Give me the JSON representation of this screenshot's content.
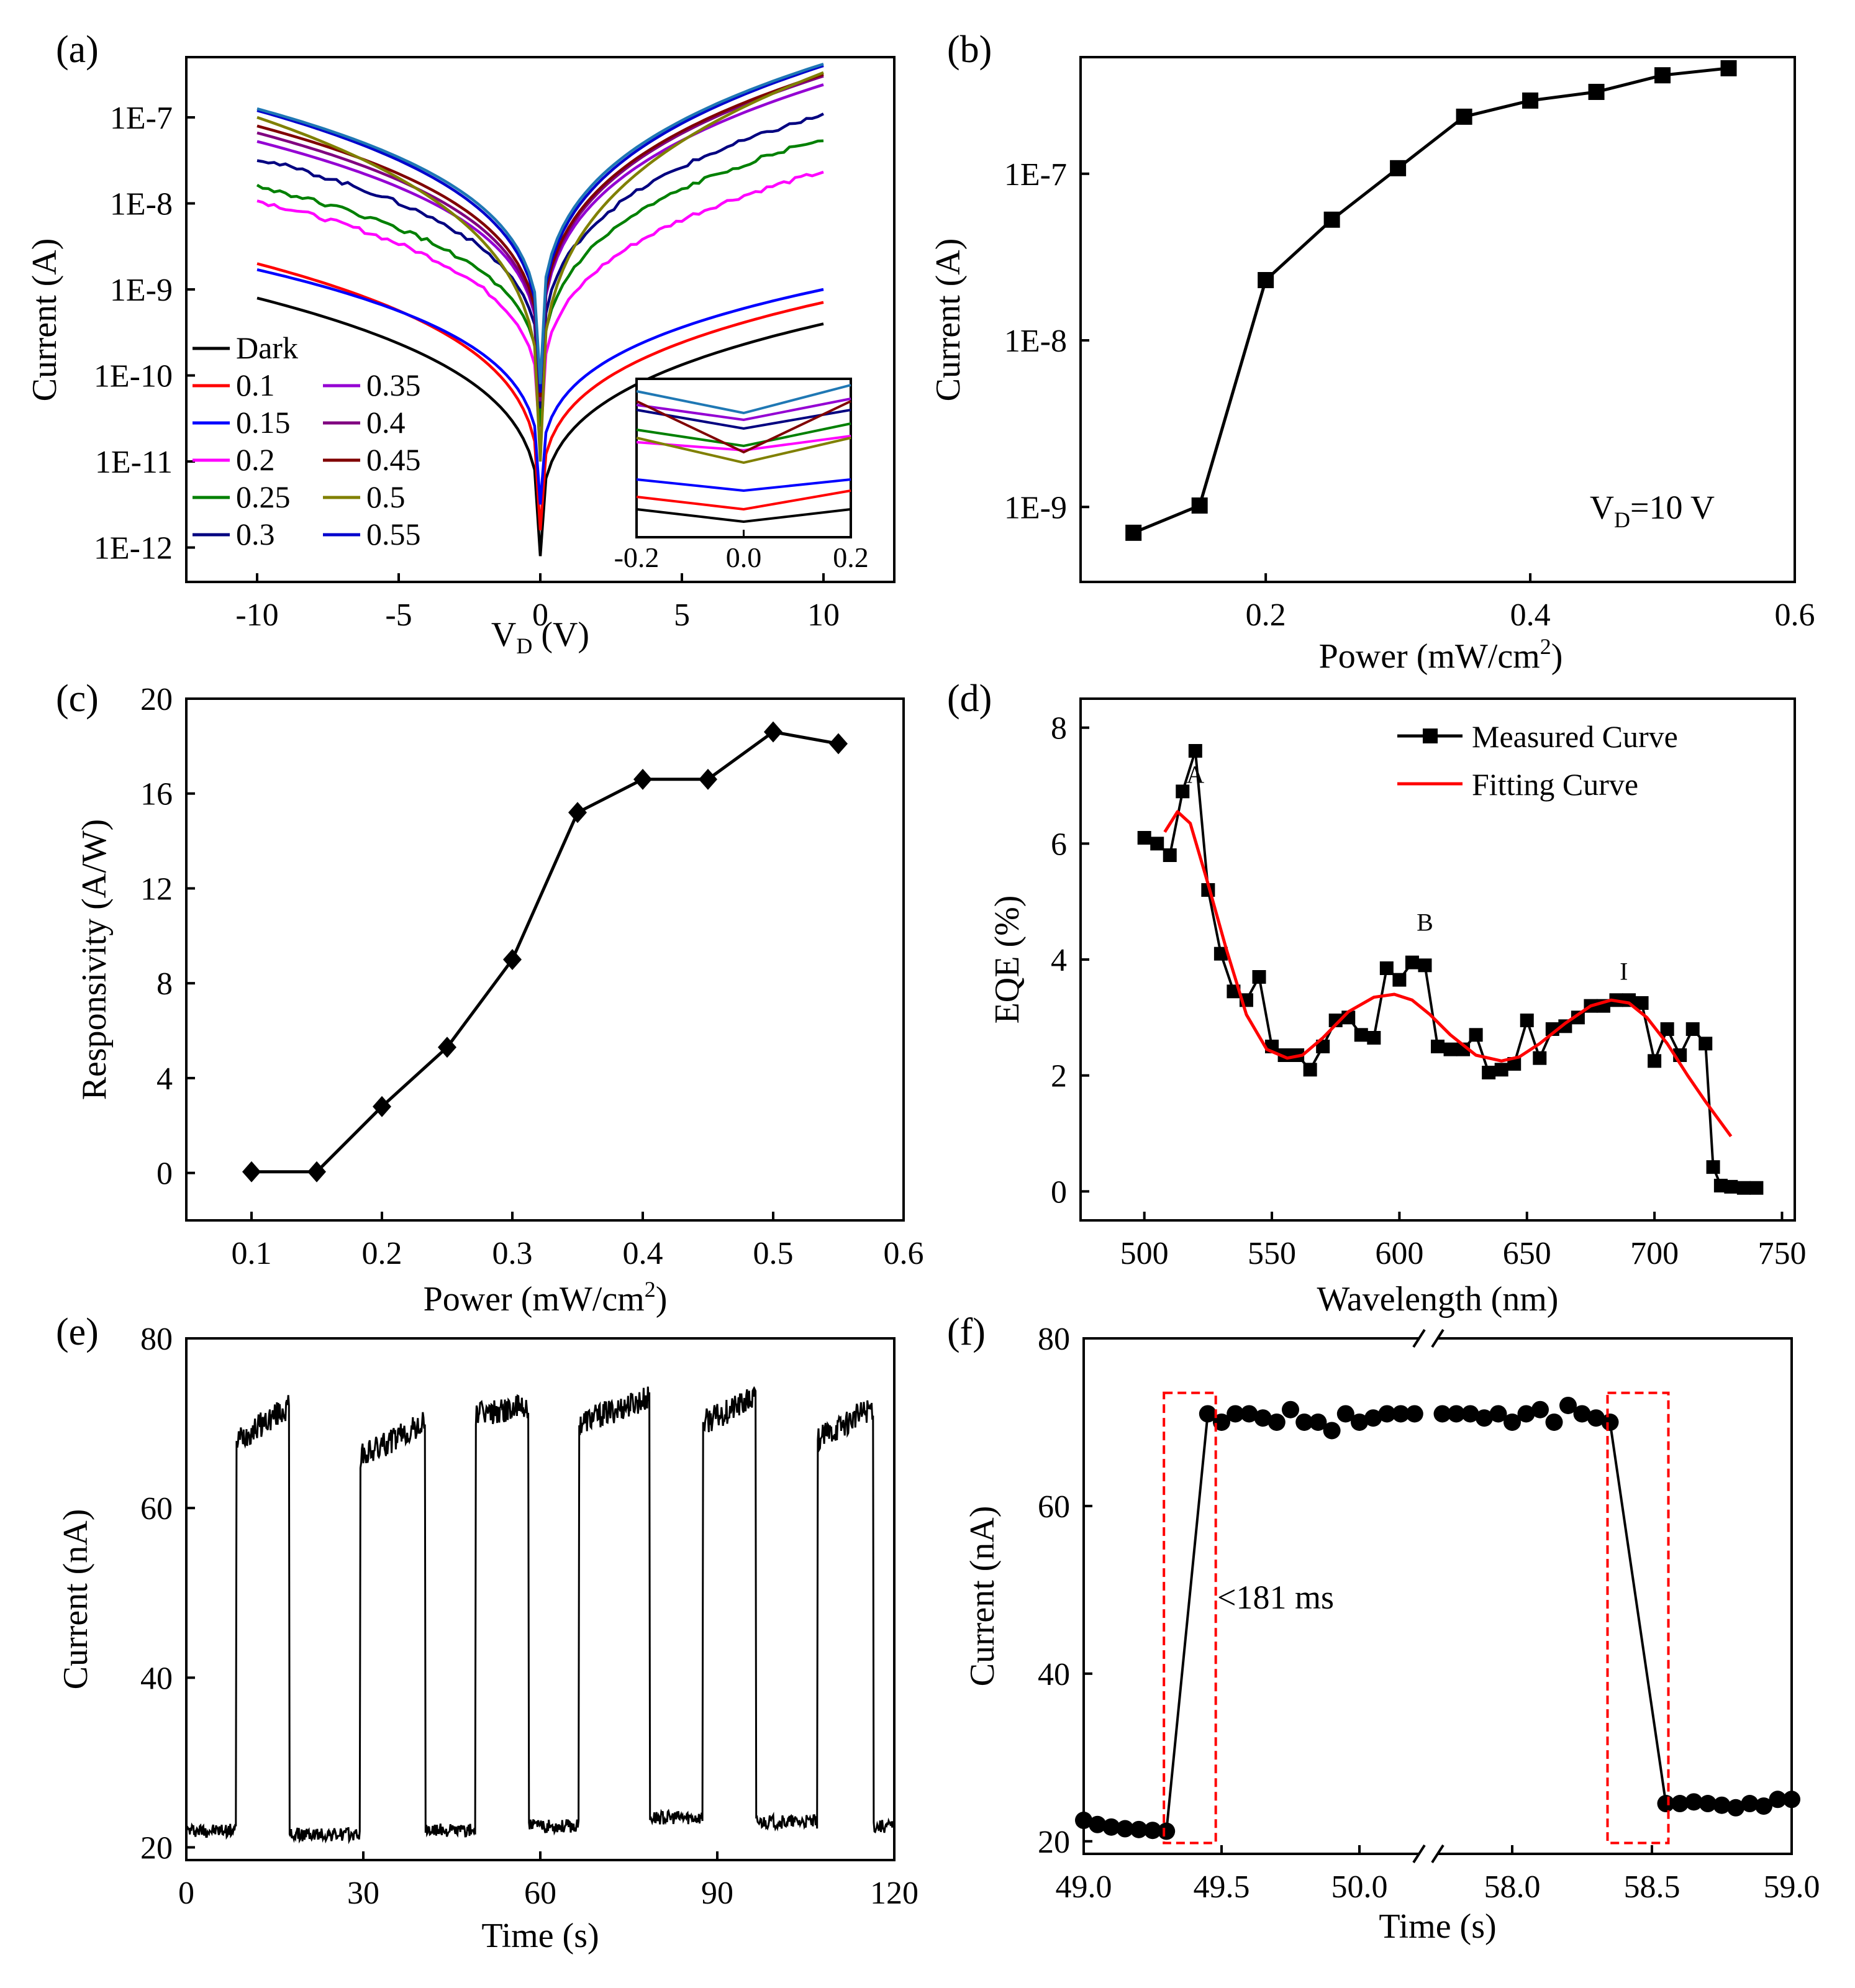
{
  "chart_data": [
    {
      "panel": "(a)",
      "type": "line",
      "xlabel": "V_D (V)",
      "ylabel": "Current (A)",
      "yscale": "log",
      "xlim": [
        -12.5,
        12.5
      ],
      "ylim_exp": [
        -12.4,
        -6.3
      ],
      "xticks": [
        "-10",
        "-5",
        "0",
        "5",
        "10"
      ],
      "xtick_values": [
        -10,
        -5,
        0,
        5,
        10
      ],
      "yticks": [
        "1E-12",
        "1E-11",
        "1E-10",
        "1E-9",
        "1E-8",
        "1E-7"
      ],
      "ytick_exps": [
        -12,
        -11,
        -10,
        -9,
        -8,
        -7
      ],
      "series": [
        {
          "name": "Dark",
          "color": "#000000",
          "left": -9.1,
          "right": -9.4,
          "min": -12.1
        },
        {
          "name": "0.1",
          "color": "#ff0000",
          "left": -8.7,
          "right": -9.15,
          "min": -11.8
        },
        {
          "name": "0.15",
          "color": "#0000ff",
          "left": -8.77,
          "right": -9.0,
          "min": -11.5
        },
        {
          "name": "0.2",
          "color": "#ff00ff",
          "left": -7.97,
          "right": -7.63,
          "min": -10.8
        },
        {
          "name": "0.25",
          "color": "#008000",
          "left": -7.8,
          "right": -7.25,
          "min": -10.6
        },
        {
          "name": "0.3",
          "color": "#000080",
          "left": -7.48,
          "right": -6.97,
          "min": -10.4
        },
        {
          "name": "0.35",
          "color": "#9400d3",
          "left": -7.28,
          "right": -6.62,
          "min": -10.3
        },
        {
          "name": "0.4",
          "color": "#800080",
          "left": -7.18,
          "right": -6.52,
          "min": -10.3
        },
        {
          "name": "0.45",
          "color": "#800000",
          "left": -7.1,
          "right": -6.5,
          "min": -10.25
        },
        {
          "name": "0.5",
          "color": "#808000",
          "left": -7.0,
          "right": -6.48,
          "min": -11.0
        },
        {
          "name": "0.55",
          "color": "#0000cd",
          "left": -6.92,
          "right": -6.4,
          "min": -10.2
        },
        {
          "name": "",
          "color": "#1f78b4",
          "left": -6.9,
          "right": -6.38,
          "min": -10.1
        }
      ],
      "inset": {
        "xticks": [
          "-0.2",
          "0.0",
          "0.2"
        ],
        "xtick_values": [
          -0.2,
          0,
          0.2
        ]
      }
    },
    {
      "panel": "(b)",
      "type": "line",
      "marker": "square",
      "xlabel": "Power (mW/cm²)",
      "ylabel": "Current (A)",
      "yscale": "log",
      "annotation": "V_D=10 V",
      "xlim": [
        0.06,
        0.6
      ],
      "ylim_exp": [
        -9.45,
        -6.3
      ],
      "xticks": [
        "0.2",
        "0.4",
        "0.6"
      ],
      "xtick_values": [
        0.2,
        0.4,
        0.6
      ],
      "yticks": [
        "1E-9",
        "1E-8",
        "1E-7"
      ],
      "ytick_exps": [
        -9,
        -8,
        -7
      ],
      "x": [
        0.1,
        0.15,
        0.2,
        0.25,
        0.3,
        0.35,
        0.4,
        0.45,
        0.5,
        0.55
      ],
      "y": [
        7e-10,
        1.02e-09,
        2.3e-08,
        5.3e-08,
        1.08e-07,
        2.2e-07,
        2.75e-07,
        3.1e-07,
        3.9e-07,
        4.3e-07
      ]
    },
    {
      "panel": "(c)",
      "type": "line",
      "marker": "diamond",
      "xlabel": "Power (mW/cm²)",
      "ylabel": "Responsivity (A/W)",
      "xlim": [
        0.05,
        0.6
      ],
      "ylim": [
        -2,
        20
      ],
      "xticks": [
        "0.1",
        "0.2",
        "0.3",
        "0.4",
        "0.5",
        "0.6"
      ],
      "xtick_values": [
        0.1,
        0.2,
        0.3,
        0.4,
        0.5,
        0.6
      ],
      "yticks": [
        "0",
        "4",
        "8",
        "12",
        "16",
        "20"
      ],
      "ytick_values": [
        0,
        4,
        8,
        12,
        16,
        20
      ],
      "x": [
        0.1,
        0.15,
        0.2,
        0.25,
        0.3,
        0.35,
        0.4,
        0.45,
        0.5,
        0.55
      ],
      "y": [
        0.05,
        0.05,
        2.8,
        5.3,
        9.0,
        15.2,
        16.6,
        16.6,
        18.6,
        18.1
      ]
    },
    {
      "panel": "(d)",
      "type": "line",
      "xlabel": "Wavelength (nm)",
      "ylabel": "EQE (%)",
      "xlim": [
        475,
        755
      ],
      "ylim": [
        -0.5,
        8.5
      ],
      "xticks": [
        "500",
        "550",
        "600",
        "650",
        "700",
        "750"
      ],
      "xtick_values": [
        500,
        550,
        600,
        650,
        700,
        750
      ],
      "yticks": [
        "0",
        "2",
        "4",
        "6",
        "8"
      ],
      "ytick_values": [
        0,
        2,
        4,
        6,
        8
      ],
      "legend": [
        "Measured Curve",
        "Fitting Curve"
      ],
      "peak_labels": [
        "A",
        "B",
        "I"
      ],
      "peak_positions": [
        {
          "x": 520,
          "y": 7.05
        },
        {
          "x": 610,
          "y": 4.5
        },
        {
          "x": 688,
          "y": 3.65
        }
      ],
      "series": [
        {
          "name": "Measured Curve",
          "color": "#000000",
          "x": [
            500,
            505,
            510,
            515,
            520,
            525,
            530,
            535,
            540,
            545,
            550,
            555,
            560,
            565,
            570,
            575,
            580,
            585,
            590,
            595,
            600,
            605,
            610,
            615,
            620,
            625,
            630,
            635,
            640,
            645,
            650,
            655,
            660,
            665,
            670,
            675,
            680,
            685,
            690,
            695,
            700,
            705,
            710,
            715,
            720,
            723,
            726,
            730,
            735,
            740
          ],
          "y": [
            6.1,
            6.0,
            5.8,
            6.9,
            7.6,
            5.2,
            4.1,
            3.45,
            3.3,
            3.7,
            2.5,
            2.35,
            2.35,
            2.1,
            2.5,
            2.95,
            3.0,
            2.7,
            2.65,
            3.85,
            3.65,
            3.95,
            3.9,
            2.5,
            2.45,
            2.45,
            2.7,
            2.05,
            2.1,
            2.2,
            2.95,
            2.3,
            2.8,
            2.85,
            3.0,
            3.2,
            3.2,
            3.3,
            3.3,
            3.25,
            2.25,
            2.8,
            2.35,
            2.8,
            2.55,
            0.42,
            0.1,
            0.08,
            0.06,
            0.06
          ]
        },
        {
          "name": "Fitting Curve",
          "color": "#ff0000",
          "x": [
            508,
            513,
            518,
            525,
            532,
            540,
            548,
            556,
            562,
            570,
            580,
            590,
            598,
            605,
            612,
            620,
            630,
            640,
            647,
            655,
            665,
            675,
            683,
            690,
            697,
            705,
            713,
            720,
            725,
            730
          ],
          "y": [
            6.2,
            6.55,
            6.35,
            5.3,
            4.2,
            3.05,
            2.45,
            2.3,
            2.35,
            2.65,
            3.1,
            3.35,
            3.4,
            3.3,
            3.05,
            2.7,
            2.35,
            2.25,
            2.32,
            2.55,
            2.9,
            3.2,
            3.3,
            3.25,
            3.0,
            2.55,
            2.0,
            1.55,
            1.25,
            0.95
          ]
        }
      ]
    },
    {
      "panel": "(e)",
      "type": "line",
      "xlabel": "Time (s)",
      "ylabel": "Current (nA)",
      "xlim": [
        0,
        120
      ],
      "ylim": [
        18.5,
        80
      ],
      "xticks": [
        "0",
        "30",
        "60",
        "90",
        "120"
      ],
      "xtick_values": [
        0,
        30,
        60,
        90,
        120
      ],
      "yticks": [
        "20",
        "40",
        "60",
        "80"
      ],
      "ytick_values": [
        20,
        40,
        60,
        80
      ],
      "baseline_nA": [
        22,
        21.5,
        22,
        22.5,
        23.5,
        23,
        22.5
      ],
      "on_periods": [
        {
          "start": 8.5,
          "end": 17.5,
          "start_level": 68,
          "end_level": 72
        },
        {
          "start": 29.5,
          "end": 40.5,
          "start_level": 66,
          "end_level": 70
        },
        {
          "start": 49,
          "end": 58,
          "start_level": 71,
          "end_level": 72
        },
        {
          "start": 66.5,
          "end": 78.5,
          "start_level": 70,
          "end_level": 73
        },
        {
          "start": 87.5,
          "end": 96.5,
          "start_level": 70,
          "end_level": 73
        },
        {
          "start": 107,
          "end": 116.5,
          "start_level": 68,
          "end_level": 72
        }
      ]
    },
    {
      "panel": "(f)",
      "type": "scatter",
      "xlabel": "Time (s)",
      "ylabel": "Current (nA)",
      "ylim": [
        18.5,
        80
      ],
      "annotation": "<181 ms",
      "xticks": [
        "49.0",
        "49.5",
        "50.0",
        "58.0",
        "58.5",
        "59.0"
      ],
      "xtick_values": [
        49.0,
        49.5,
        50.0,
        58.0,
        58.5,
        59.0
      ],
      "yticks": [
        "20",
        "40",
        "60",
        "80"
      ],
      "ytick_values": [
        20,
        40,
        60,
        80
      ],
      "segment_1": {
        "xlim": [
          49.0,
          50.25
        ],
        "x": [
          49.0,
          49.05,
          49.1,
          49.15,
          49.2,
          49.25,
          49.3,
          49.45,
          49.5,
          49.55,
          49.6,
          49.65,
          49.7,
          49.75,
          49.8,
          49.85,
          49.9,
          49.95,
          50.0,
          50.05,
          50.1,
          50.15,
          50.2
        ],
        "y": [
          22.5,
          22,
          21.7,
          21.5,
          21.4,
          21.3,
          21.2,
          71,
          70,
          71,
          71,
          70.5,
          70,
          71.5,
          70,
          70,
          69,
          71,
          70,
          70.5,
          71,
          71,
          71
        ]
      },
      "segment_2": {
        "xlim": [
          57.7,
          59.0
        ],
        "x": [
          57.75,
          57.8,
          57.85,
          57.9,
          57.95,
          58.0,
          58.05,
          58.1,
          58.15,
          58.2,
          58.25,
          58.3,
          58.35,
          58.55,
          58.6,
          58.65,
          58.7,
          58.75,
          58.8,
          58.85,
          58.9,
          58.95,
          59.0
        ],
        "y": [
          71,
          71,
          71,
          70.5,
          71,
          70,
          71,
          71.5,
          70,
          72,
          71,
          70.5,
          70,
          24.5,
          24.5,
          24.7,
          24.5,
          24.3,
          24,
          24.5,
          24.2,
          25,
          25
        ]
      },
      "rise_window": [
        49.3,
        49.47
      ],
      "fall_window": [
        58.35,
        58.55
      ]
    }
  ]
}
